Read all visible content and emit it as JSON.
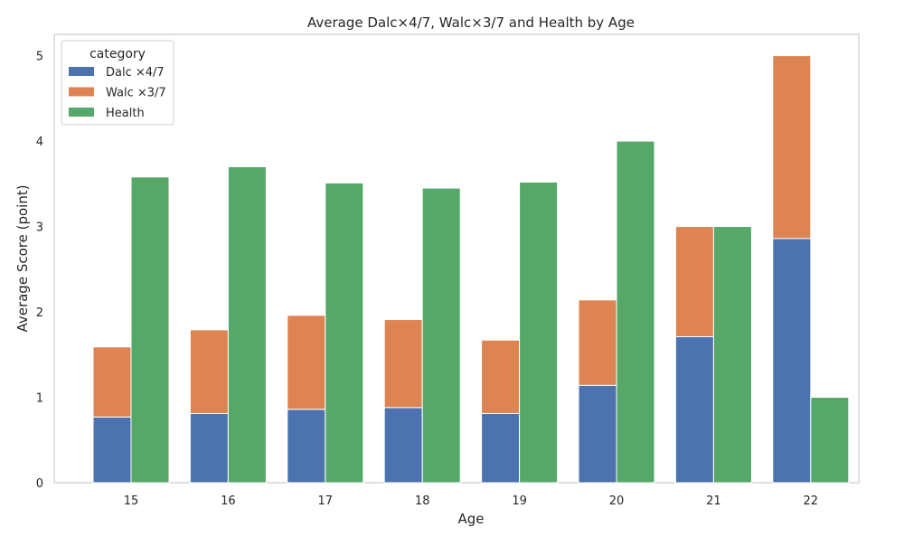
{
  "chart_data": {
    "type": "bar",
    "title": "Average Dalc×4/7, Walc×3/7 and Health by Age",
    "xlabel": "Age",
    "ylabel": "Average Score (point)",
    "categories": [
      "15",
      "16",
      "17",
      "18",
      "19",
      "20",
      "21",
      "22"
    ],
    "ylim": [
      0,
      5.25
    ],
    "yticks": [
      0,
      1,
      2,
      3,
      4,
      5
    ],
    "grid": false,
    "legend": {
      "title": "category",
      "placement": "top-left"
    },
    "stacked_groups": [
      {
        "stack": [
          "Dalc ×4/7",
          "Walc ×3/7"
        ]
      },
      {
        "stack": [
          "Health"
        ]
      }
    ],
    "series": [
      {
        "name": "Dalc ×4/7",
        "color": "#4c72b0",
        "values": [
          0.77,
          0.81,
          0.86,
          0.88,
          0.81,
          1.14,
          1.71,
          2.86
        ]
      },
      {
        "name": "Walc ×3/7",
        "color": "#dd8452",
        "values": [
          0.82,
          0.98,
          1.1,
          1.03,
          0.86,
          1.0,
          1.29,
          2.14
        ]
      },
      {
        "name": "Health",
        "color": "#55a868",
        "values": [
          3.58,
          3.7,
          3.51,
          3.45,
          3.52,
          4.0,
          3.0,
          1.0
        ]
      }
    ]
  }
}
